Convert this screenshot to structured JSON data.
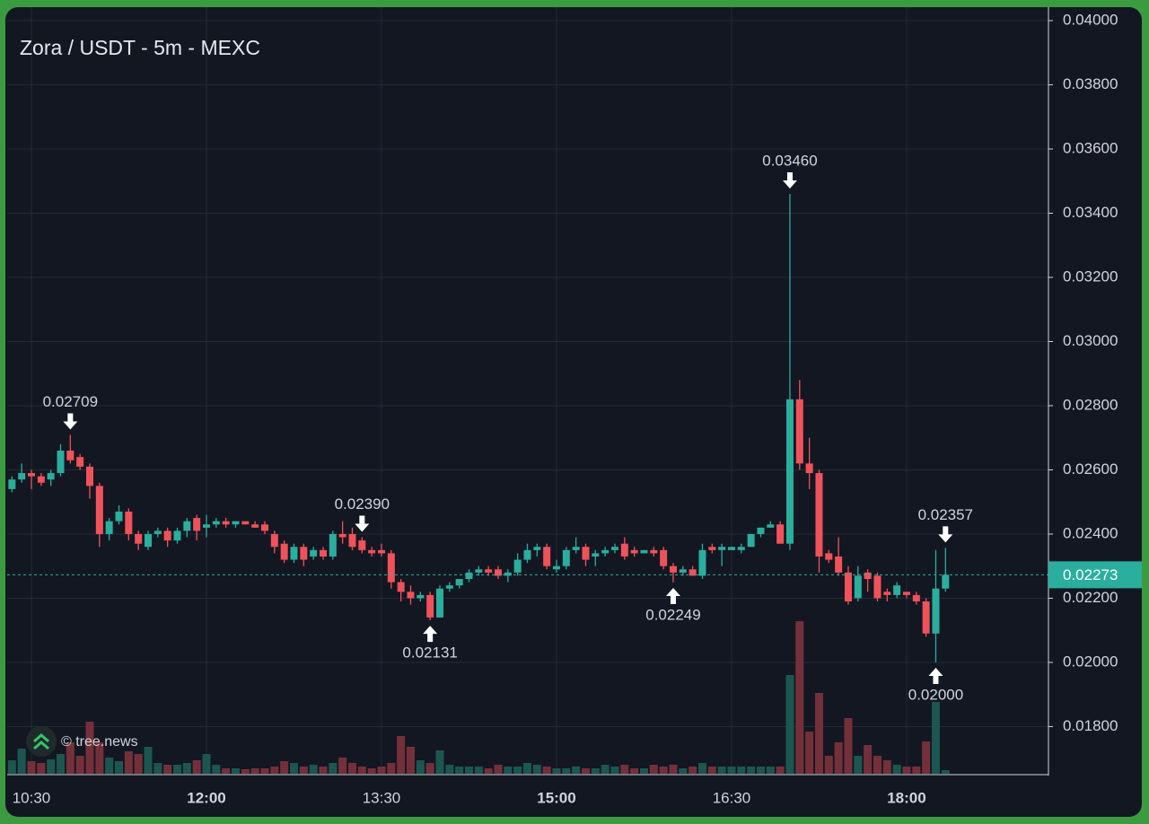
{
  "chart_data": {
    "type": "candlestick",
    "title": "Zora / USDT - 5m - MEXC",
    "watermark": "© tree.news",
    "up_color": "#2aae9e",
    "down_color": "#f0525a",
    "up_volume_color": "#1c5650",
    "down_volume_color": "#74303a",
    "x": [
      "10:20",
      "10:25",
      "10:30",
      "10:35",
      "10:40",
      "10:45",
      "10:50",
      "10:55",
      "11:00",
      "11:05",
      "11:10",
      "11:15",
      "11:20",
      "11:25",
      "11:30",
      "11:35",
      "11:40",
      "11:45",
      "11:50",
      "11:55",
      "12:00",
      "12:05",
      "12:10",
      "12:15",
      "12:20",
      "12:25",
      "12:30",
      "12:35",
      "12:40",
      "12:45",
      "12:50",
      "12:55",
      "13:00",
      "13:05",
      "13:10",
      "13:15",
      "13:20",
      "13:25",
      "13:30",
      "13:35",
      "13:40",
      "13:45",
      "13:50",
      "13:55",
      "14:00",
      "14:05",
      "14:10",
      "14:15",
      "14:20",
      "14:25",
      "14:30",
      "14:35",
      "14:40",
      "14:45",
      "14:50",
      "14:55",
      "15:00",
      "15:05",
      "15:10",
      "15:15",
      "15:20",
      "15:25",
      "15:30",
      "15:35",
      "15:40",
      "15:45",
      "15:50",
      "15:55",
      "16:00",
      "16:05",
      "16:10",
      "16:15",
      "16:20",
      "16:25",
      "16:30",
      "16:35",
      "16:40",
      "16:45",
      "16:50",
      "16:55",
      "17:00",
      "17:05",
      "17:10",
      "17:15",
      "17:20",
      "17:25",
      "17:30",
      "17:35",
      "17:40",
      "17:45",
      "17:50",
      "17:55",
      "18:00",
      "18:05",
      "18:10",
      "18:15",
      "18:20"
    ],
    "open": [
      0.0254,
      0.0257,
      0.0259,
      0.0258,
      0.0257,
      0.0259,
      0.0266,
      0.0264,
      0.0261,
      0.0255,
      0.024,
      0.0244,
      0.0247,
      0.024,
      0.0236,
      0.024,
      0.0241,
      0.0238,
      0.0241,
      0.0245,
      0.0242,
      0.0243,
      0.0244,
      0.0243,
      0.0244,
      0.0243,
      0.0243,
      0.024,
      0.0237,
      0.0232,
      0.0236,
      0.0233,
      0.0235,
      0.0233,
      0.024,
      0.024,
      0.0238,
      0.0235,
      0.0235,
      0.0234,
      0.0225,
      0.0222,
      0.022,
      0.0221,
      0.0214,
      0.0223,
      0.0224,
      0.0226,
      0.0228,
      0.0229,
      0.0229,
      0.0227,
      0.0228,
      0.0232,
      0.0235,
      0.0236,
      0.0229,
      0.023,
      0.0235,
      0.0236,
      0.0233,
      0.0234,
      0.0235,
      0.0237,
      0.0235,
      0.0234,
      0.0235,
      0.0235,
      0.023,
      0.0228,
      0.0229,
      0.0227,
      0.0236,
      0.0235,
      0.0235,
      0.0235,
      0.0236,
      0.024,
      0.0242,
      0.0243,
      0.0237,
      0.0282,
      0.0262,
      0.0259,
      0.0234,
      0.0233,
      0.0228,
      0.022,
      0.0228,
      0.0227,
      0.0222,
      0.0221,
      0.0222,
      0.0221,
      0.0219,
      0.0209,
      0.0223
    ],
    "high": [
      0.0258,
      0.0262,
      0.026,
      0.0259,
      0.026,
      0.0268,
      0.02709,
      0.0265,
      0.0262,
      0.0256,
      0.0245,
      0.0249,
      0.0248,
      0.0241,
      0.0241,
      0.0242,
      0.0242,
      0.0242,
      0.0245,
      0.0246,
      0.0246,
      0.0245,
      0.0245,
      0.0244,
      0.0244,
      0.0244,
      0.0244,
      0.0241,
      0.0238,
      0.0237,
      0.0237,
      0.0236,
      0.0236,
      0.0241,
      0.0244,
      0.0242,
      0.0239,
      0.0236,
      0.0237,
      0.0235,
      0.0226,
      0.0224,
      0.0222,
      0.0222,
      0.0224,
      0.0225,
      0.0226,
      0.0229,
      0.023,
      0.023,
      0.023,
      0.0229,
      0.0234,
      0.0237,
      0.0237,
      0.0237,
      0.0232,
      0.0236,
      0.0239,
      0.0237,
      0.0235,
      0.0236,
      0.0237,
      0.0239,
      0.0236,
      0.0235,
      0.0236,
      0.0236,
      0.0231,
      0.023,
      0.023,
      0.0237,
      0.0237,
      0.0237,
      0.0236,
      0.0237,
      0.024,
      0.0242,
      0.0244,
      0.0244,
      0.0346,
      0.0288,
      0.027,
      0.026,
      0.0235,
      0.0239,
      0.023,
      0.023,
      0.0229,
      0.0228,
      0.0223,
      0.0225,
      0.0222,
      0.0222,
      0.022,
      0.0235,
      0.02357
    ],
    "low": [
      0.0253,
      0.0256,
      0.0254,
      0.0255,
      0.0255,
      0.0258,
      0.0262,
      0.026,
      0.0251,
      0.0236,
      0.0238,
      0.0243,
      0.0238,
      0.0235,
      0.0235,
      0.0239,
      0.0236,
      0.0237,
      0.0239,
      0.0238,
      0.0239,
      0.0242,
      0.0242,
      0.0242,
      0.0243,
      0.0242,
      0.024,
      0.0234,
      0.0231,
      0.0231,
      0.023,
      0.0232,
      0.0232,
      0.0232,
      0.0237,
      0.0235,
      0.0234,
      0.0233,
      0.0233,
      0.0223,
      0.0219,
      0.0218,
      0.0219,
      0.02131,
      0.0214,
      0.0222,
      0.0223,
      0.0225,
      0.0227,
      0.0227,
      0.0226,
      0.0225,
      0.0227,
      0.0231,
      0.0233,
      0.0229,
      0.0228,
      0.0229,
      0.0234,
      0.023,
      0.023,
      0.0233,
      0.0234,
      0.0232,
      0.0233,
      0.0234,
      0.0233,
      0.0229,
      0.02249,
      0.0227,
      0.0227,
      0.0226,
      0.0234,
      0.023,
      0.0235,
      0.0234,
      0.0236,
      0.0239,
      0.0242,
      0.0237,
      0.0235,
      0.026,
      0.0254,
      0.0228,
      0.0231,
      0.0227,
      0.0218,
      0.0219,
      0.0222,
      0.0219,
      0.0219,
      0.022,
      0.022,
      0.0218,
      0.0208,
      0.02,
      0.0222
    ],
    "close": [
      0.0257,
      0.0259,
      0.0258,
      0.0256,
      0.0259,
      0.0266,
      0.0263,
      0.0261,
      0.0255,
      0.024,
      0.0244,
      0.0247,
      0.024,
      0.0237,
      0.024,
      0.0241,
      0.0238,
      0.0241,
      0.0244,
      0.0241,
      0.0243,
      0.0244,
      0.0243,
      0.0244,
      0.0243,
      0.0242,
      0.0241,
      0.0236,
      0.0232,
      0.0236,
      0.0232,
      0.0235,
      0.0233,
      0.024,
      0.0239,
      0.0236,
      0.0235,
      0.0234,
      0.0234,
      0.0225,
      0.0222,
      0.022,
      0.0221,
      0.0214,
      0.0223,
      0.0224,
      0.0226,
      0.0228,
      0.0229,
      0.0228,
      0.0227,
      0.0228,
      0.0232,
      0.0235,
      0.0236,
      0.023,
      0.023,
      0.0235,
      0.0236,
      0.0232,
      0.0234,
      0.0235,
      0.0236,
      0.0233,
      0.0234,
      0.0235,
      0.0234,
      0.023,
      0.0228,
      0.0229,
      0.0227,
      0.0235,
      0.0235,
      0.0236,
      0.0236,
      0.0236,
      0.024,
      0.0242,
      0.0243,
      0.0237,
      0.0282,
      0.0262,
      0.0259,
      0.0233,
      0.0232,
      0.0228,
      0.0219,
      0.0227,
      0.0226,
      0.022,
      0.0221,
      0.0224,
      0.0221,
      0.0219,
      0.0209,
      0.0223,
      0.02273
    ],
    "volume": [
      15,
      28,
      14,
      12,
      16,
      22,
      35,
      20,
      58,
      35,
      18,
      14,
      25,
      22,
      30,
      12,
      10,
      10,
      12,
      15,
      22,
      10,
      6,
      6,
      5,
      6,
      6,
      8,
      14,
      12,
      8,
      10,
      8,
      12,
      18,
      12,
      8,
      6,
      8,
      12,
      42,
      30,
      15,
      12,
      26,
      10,
      8,
      8,
      8,
      6,
      10,
      8,
      8,
      12,
      10,
      8,
      6,
      6,
      8,
      6,
      6,
      10,
      8,
      10,
      6,
      6,
      10,
      8,
      10,
      6,
      8,
      12,
      8,
      8,
      8,
      8,
      8,
      8,
      8,
      8,
      110,
      170,
      47,
      90,
      20,
      35,
      62,
      20,
      32,
      20,
      15,
      10,
      8,
      8,
      36,
      80,
      4
    ],
    "ylim": [
      0.01653,
      0.04042
    ],
    "yticks": [
      {
        "value": 0.018,
        "label": "0.01800"
      },
      {
        "value": 0.02,
        "label": "0.02000"
      },
      {
        "value": 0.022,
        "label": "0.02200"
      },
      {
        "value": 0.024,
        "label": "0.02400"
      },
      {
        "value": 0.026,
        "label": "0.02600"
      },
      {
        "value": 0.028,
        "label": "0.02800"
      },
      {
        "value": 0.03,
        "label": "0.03000"
      },
      {
        "value": 0.032,
        "label": "0.03200"
      },
      {
        "value": 0.034,
        "label": "0.03400"
      },
      {
        "value": 0.036,
        "label": "0.03600"
      },
      {
        "value": 0.038,
        "label": "0.03800"
      },
      {
        "value": 0.04,
        "label": "0.04000"
      }
    ],
    "xticks": [
      "10:30",
      "12:00",
      "13:30",
      "15:00",
      "16:30",
      "18:00"
    ],
    "grid": true,
    "current_price": {
      "value": 0.02273,
      "label": "0.02273"
    },
    "annotations": [
      {
        "kind": "high",
        "value": 0.02709,
        "label": "0.02709"
      },
      {
        "kind": "low",
        "value": 0.02131,
        "label": "0.02131"
      },
      {
        "kind": "high",
        "value": 0.0239,
        "label": "0.02390"
      },
      {
        "kind": "low",
        "value": 0.02249,
        "label": "0.02249"
      },
      {
        "kind": "high",
        "value": 0.0346,
        "label": "0.03460"
      },
      {
        "kind": "high",
        "value": 0.02357,
        "label": "0.02357"
      },
      {
        "kind": "low",
        "value": 0.02,
        "label": "0.02000"
      }
    ]
  }
}
